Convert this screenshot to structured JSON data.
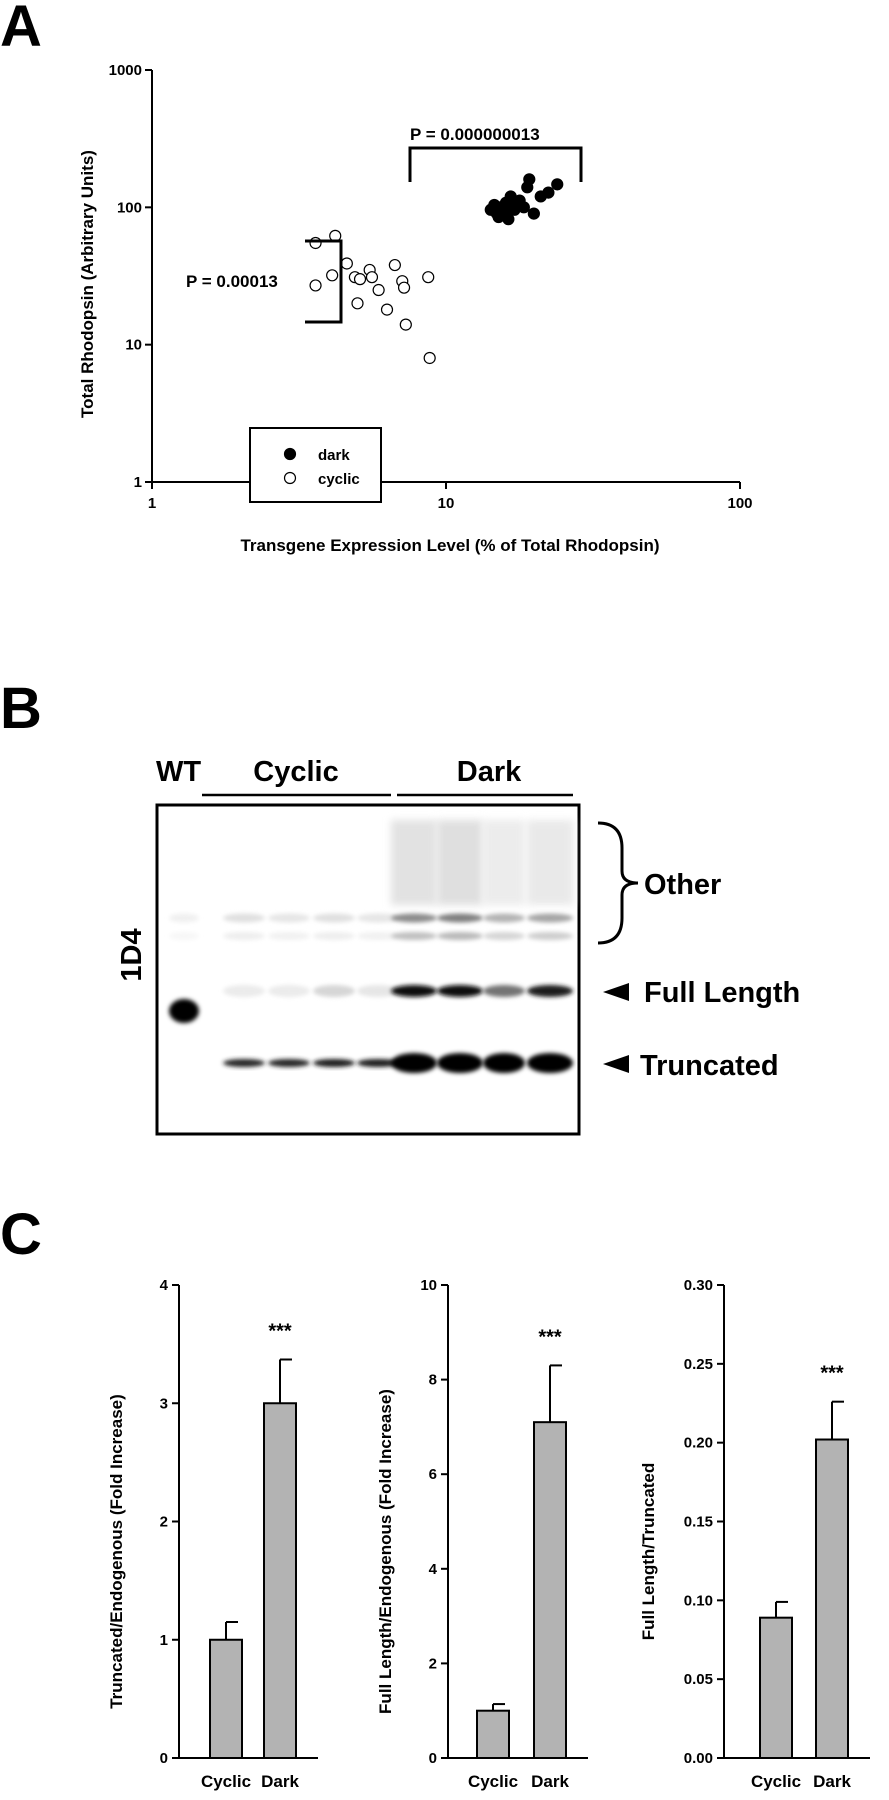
{
  "panels": {
    "a": "A",
    "b": "B",
    "c": "C"
  },
  "chart_data": [
    {
      "type": "scatter",
      "xlabel": "Transgene Expression Level (% of Total Rhodopsin)",
      "ylabel": "Total Rhodopsin (Arbitrary Units)",
      "xscale": "log",
      "yscale": "log",
      "xlim": [
        1,
        100
      ],
      "ylim": [
        1,
        1000
      ],
      "x_ticks": [
        "1",
        "10",
        "100"
      ],
      "y_ticks": [
        "1",
        "10",
        "100",
        "1000"
      ],
      "legend": {
        "placement": "bottom-left",
        "entries": [
          "dark",
          "cyclic"
        ]
      },
      "annotations": {
        "comparison": "P = 0.000000013",
        "within_cyclic": "P = 0.00013"
      },
      "series": [
        {
          "name": "dark",
          "marker": "filled",
          "x": [
            14.2,
            14.6,
            14.9,
            15.3,
            15.1,
            15.7,
            16.3,
            16.0,
            15.4,
            14.8,
            15.9,
            16.6,
            17.4,
            17.8,
            18.4,
            19.2,
            19.9,
            21.0,
            22.3,
            23.9,
            18.9,
            17.1
          ],
          "y": [
            96,
            104,
            90,
            100,
            85,
            95,
            82,
            108,
            88,
            101,
            94,
            120,
            105,
            112,
            100,
            160,
            90,
            120,
            128,
            147,
            140,
            96
          ]
        },
        {
          "name": "cyclic",
          "marker": "open",
          "x": [
            3.6,
            3.6,
            4.1,
            4.2,
            4.6,
            4.9,
            5.1,
            5.0,
            5.5,
            5.6,
            5.9,
            6.3,
            6.7,
            7.1,
            7.2,
            7.3,
            8.7,
            8.8
          ],
          "y": [
            55,
            27,
            32,
            62,
            39,
            31,
            30,
            20,
            35,
            31,
            25,
            18,
            38,
            29,
            26,
            14,
            31,
            8
          ]
        }
      ]
    },
    {
      "type": "bar",
      "categories": [
        "Cyclic",
        "Dark"
      ],
      "values": [
        1.0,
        3.0
      ],
      "errors": [
        0.15,
        0.37
      ],
      "ylabel": "Truncated/Endogenous (Fold Increase)",
      "ylim": [
        0,
        4
      ],
      "y_ticks": [
        "0",
        "1",
        "2",
        "3",
        "4"
      ],
      "significance": "***",
      "color": "#b3b3b3"
    },
    {
      "type": "bar",
      "categories": [
        "Cyclic",
        "Dark"
      ],
      "values": [
        1.0,
        7.1
      ],
      "errors": [
        0.14,
        1.2
      ],
      "ylabel": "Full Length/Endogenous (Fold Increase)",
      "ylim": [
        0,
        10
      ],
      "y_ticks": [
        "0",
        "2",
        "4",
        "6",
        "8",
        "10"
      ],
      "significance": "***",
      "color": "#b3b3b3"
    },
    {
      "type": "bar",
      "categories": [
        "Cyclic",
        "Dark"
      ],
      "values": [
        0.089,
        0.202
      ],
      "errors": [
        0.01,
        0.024
      ],
      "ylabel": "Full Length/Truncated",
      "ylim": [
        0,
        0.3
      ],
      "y_ticks": [
        "0.00",
        "0.05",
        "0.10",
        "0.15",
        "0.20",
        "0.25",
        "0.30"
      ],
      "significance": "***",
      "color": "#b3b3b3"
    }
  ],
  "blot": {
    "lane_groups": {
      "wt": "WT",
      "cyclic": "Cyclic",
      "dark": "Dark"
    },
    "antibody": "1D4",
    "band_labels": {
      "other": "Other",
      "full_length": "Full Length",
      "truncated": "Truncated"
    },
    "lanes": [
      {
        "group": "wt",
        "full_length": 1.0,
        "truncated": 0.0,
        "other": 0.06
      },
      {
        "group": "cyclic",
        "full_length": 0.08,
        "truncated": 0.85,
        "other": 0.12
      },
      {
        "group": "cyclic",
        "full_length": 0.08,
        "truncated": 0.85,
        "other": 0.1
      },
      {
        "group": "cyclic",
        "full_length": 0.16,
        "truncated": 0.9,
        "other": 0.12
      },
      {
        "group": "cyclic",
        "full_length": 0.1,
        "truncated": 0.88,
        "other": 0.1
      },
      {
        "group": "dark",
        "full_length": 0.95,
        "truncated": 1.0,
        "other": 0.45
      },
      {
        "group": "dark",
        "full_length": 0.95,
        "truncated": 1.0,
        "other": 0.5
      },
      {
        "group": "dark",
        "full_length": 0.55,
        "truncated": 1.0,
        "other": 0.3
      },
      {
        "group": "dark",
        "full_length": 0.9,
        "truncated": 1.0,
        "other": 0.35
      }
    ]
  }
}
